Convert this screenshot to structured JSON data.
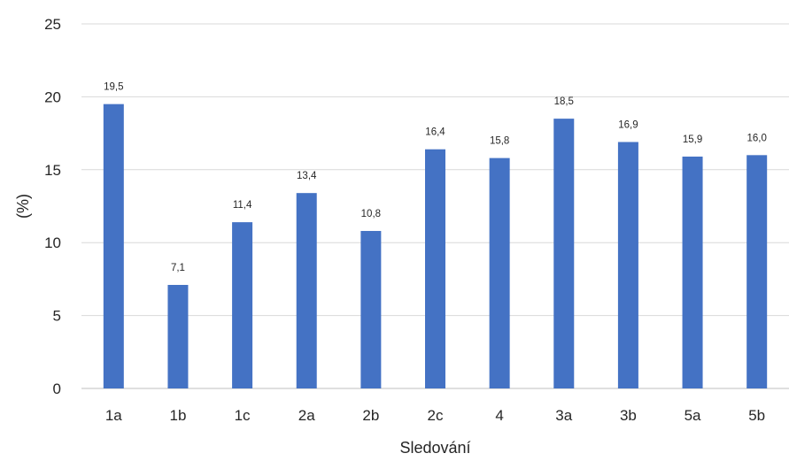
{
  "chart_data": {
    "type": "bar",
    "categories": [
      "1a",
      "1b",
      "1c",
      "2a",
      "2b",
      "2c",
      "4",
      "3a",
      "3b",
      "5a",
      "5b"
    ],
    "values": [
      19.5,
      7.1,
      11.4,
      13.4,
      10.8,
      16.4,
      15.8,
      18.5,
      16.9,
      15.9,
      16.0
    ],
    "data_labels": [
      "19,5",
      "7,1",
      "11,4",
      "13,4",
      "10,8",
      "16,4",
      "15,8",
      "18,5",
      "16,9",
      "15,9",
      "16,0"
    ],
    "yticks": [
      0,
      5,
      10,
      15,
      20,
      25
    ],
    "ytick_labels": [
      "0",
      "5",
      "10",
      "15",
      "20",
      "25"
    ],
    "ylim": [
      0,
      25
    ],
    "xlabel": "Sledování",
    "ylabel": "(%)",
    "grid": true,
    "bar_color": "#4472c4"
  }
}
